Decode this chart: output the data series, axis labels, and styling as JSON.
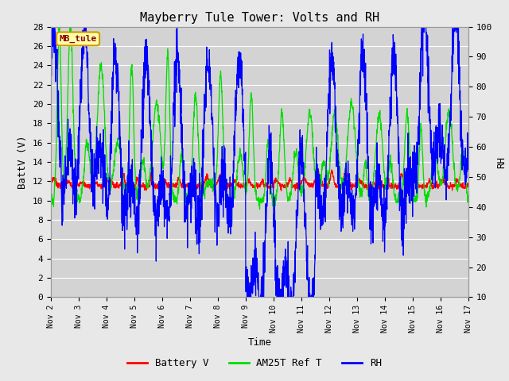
{
  "title": "Mayberry Tule Tower: Volts and RH",
  "xlabel": "Time",
  "ylabel_left": "BattV (V)",
  "ylabel_right": "RH",
  "xlim": [
    0,
    15
  ],
  "ylim_left": [
    0,
    28
  ],
  "ylim_right": [
    10,
    100
  ],
  "xtick_labels": [
    "Nov 2",
    "Nov 3",
    "Nov 4",
    "Nov 5",
    "Nov 6",
    "Nov 7",
    "Nov 8",
    "Nov 9",
    "Nov 10",
    "Nov 11",
    "Nov 12",
    "Nov 13",
    "Nov 14",
    "Nov 15",
    "Nov 16",
    "Nov 17"
  ],
  "xtick_positions": [
    0,
    1,
    2,
    3,
    4,
    5,
    6,
    7,
    8,
    9,
    10,
    11,
    12,
    13,
    14,
    15
  ],
  "ytick_left": [
    0,
    2,
    4,
    6,
    8,
    10,
    12,
    14,
    16,
    18,
    20,
    22,
    24,
    26,
    28
  ],
  "ytick_right": [
    10,
    20,
    30,
    40,
    50,
    60,
    70,
    80,
    90,
    100
  ],
  "annotation_text": "MB_tule",
  "bg_color": "#e8e8e8",
  "plot_bg_color": "#d3d3d3",
  "grid_color": "#c0c0c0",
  "battery_color": "#ff0000",
  "am25t_color": "#00dd00",
  "rh_color": "#0000ff",
  "legend_items": [
    "Battery V",
    "AM25T Ref T",
    "RH"
  ],
  "font_family": "monospace",
  "title_fontsize": 11,
  "label_fontsize": 9,
  "tick_fontsize": 8
}
